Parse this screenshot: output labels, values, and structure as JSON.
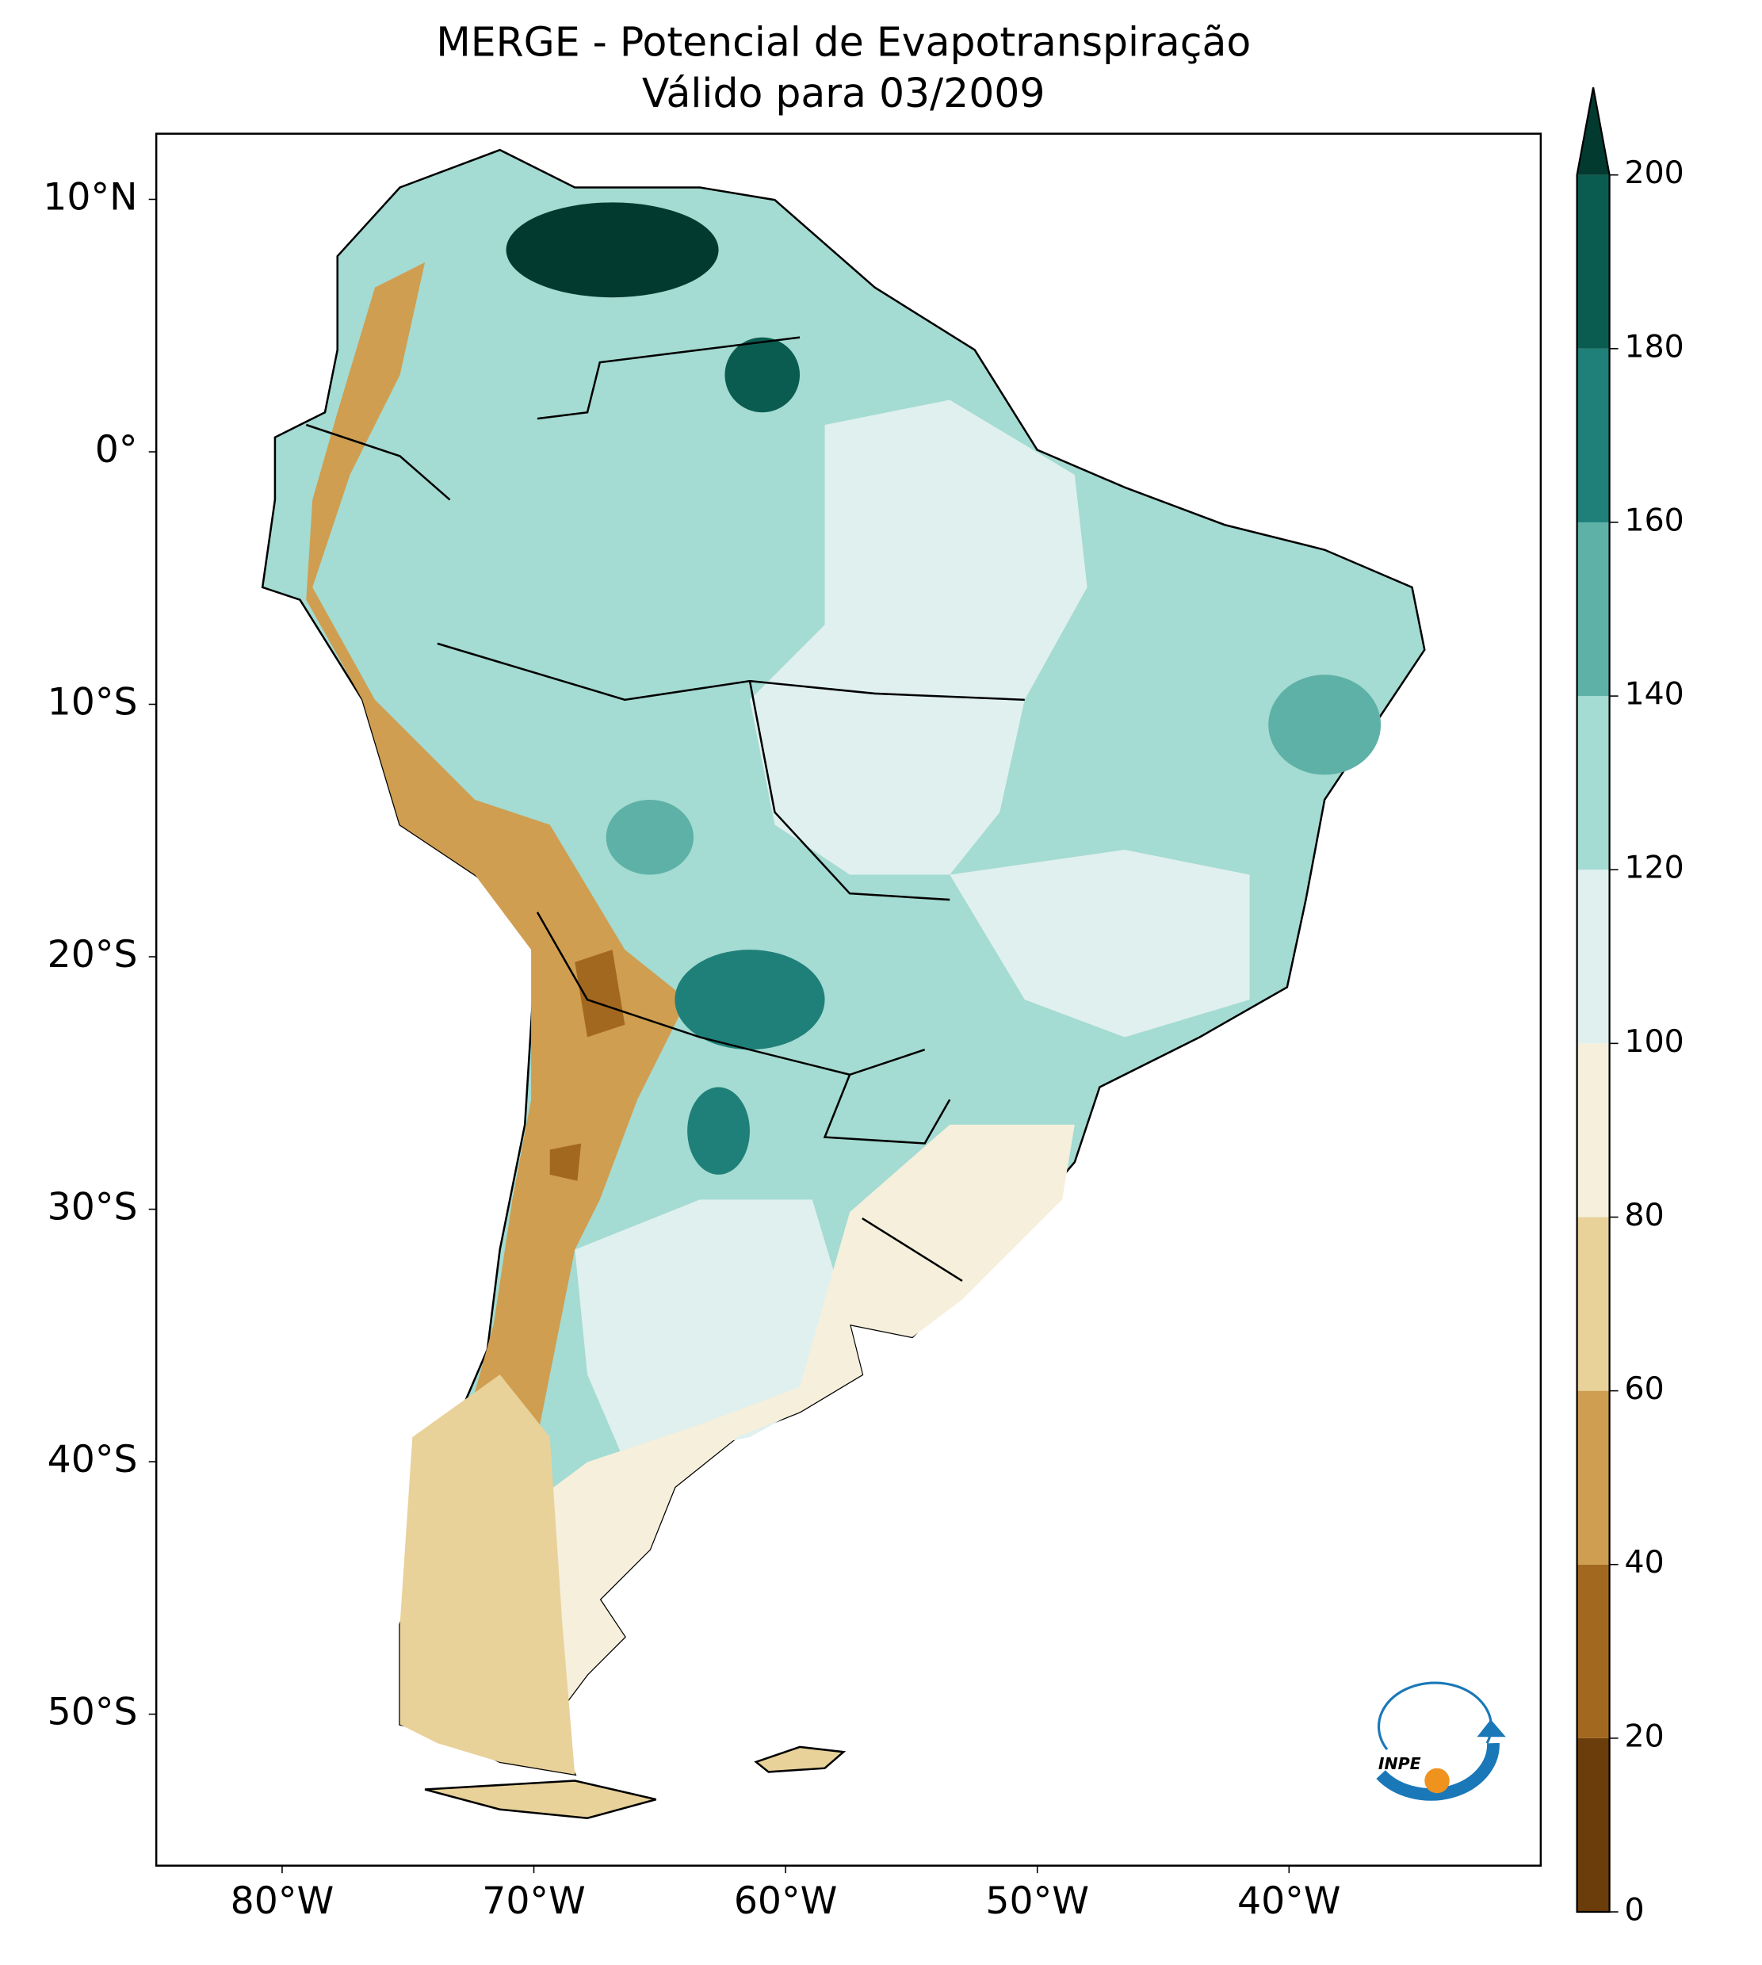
{
  "chart_data": {
    "type": "contour-map",
    "title": "MERGE - Potencial de Evapotranspiração",
    "subtitle": "Válido para 03/2009",
    "xlim": [
      -85,
      -30
    ],
    "ylim": [
      -56,
      12.6
    ],
    "xticks": [
      {
        "value": -80,
        "label": "80°W"
      },
      {
        "value": -70,
        "label": "70°W"
      },
      {
        "value": -60,
        "label": "60°W"
      },
      {
        "value": -50,
        "label": "50°W"
      },
      {
        "value": -40,
        "label": "40°W"
      }
    ],
    "yticks": [
      {
        "value": 10,
        "label": "10°N"
      },
      {
        "value": 0,
        "label": "0°"
      },
      {
        "value": -10,
        "label": "10°S"
      },
      {
        "value": -20,
        "label": "20°S"
      },
      {
        "value": -30,
        "label": "30°S"
      },
      {
        "value": -40,
        "label": "40°S"
      },
      {
        "value": -50,
        "label": "50°S"
      }
    ],
    "colorbar": {
      "levels": [
        0,
        20,
        40,
        60,
        80,
        100,
        120,
        140,
        160,
        180,
        200
      ],
      "colors": [
        "#6b3d0a",
        "#a3681f",
        "#cf9e50",
        "#e8d29a",
        "#f5efdc",
        "#dff0ee",
        "#a4dbd2",
        "#5eb1a6",
        "#1f8079",
        "#0b5c50"
      ],
      "extend_color": "#033a30"
    },
    "logo": "INPE"
  }
}
